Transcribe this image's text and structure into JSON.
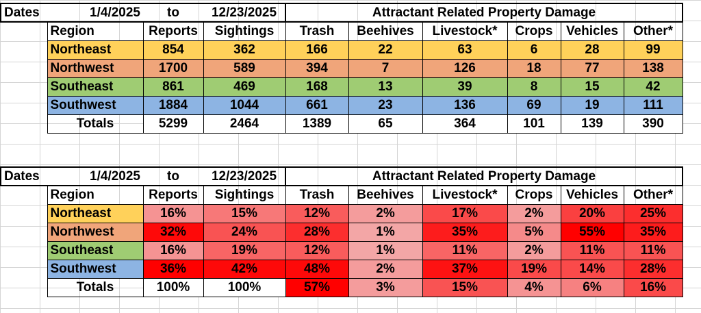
{
  "colors": {
    "northeast": "#ffd15a",
    "northwest": "#f0a57a",
    "southeast": "#9fcc73",
    "southwest": "#8db4e3",
    "heat_low": "#f2b8b8",
    "heat_high": "#ff0000"
  },
  "header": {
    "dates_label": "Dates",
    "start_date": "1/4/2025",
    "to_label": "to",
    "end_date": "12/23/2025",
    "damage_title": "Attractant Related Property Damage"
  },
  "columns": [
    "Region",
    "Reports",
    "Sightings",
    "Trash",
    "Beehives",
    "Livestock*",
    "Crops",
    "Vehicles",
    "Other*"
  ],
  "counts_table": {
    "rows": [
      {
        "region": "Northeast",
        "values": [
          "854",
          "362",
          "166",
          "22",
          "63",
          "6",
          "28",
          "99"
        ]
      },
      {
        "region": "Northwest",
        "values": [
          "1700",
          "589",
          "394",
          "7",
          "126",
          "18",
          "77",
          "138"
        ]
      },
      {
        "region": "Southeast",
        "values": [
          "861",
          "469",
          "168",
          "13",
          "39",
          "8",
          "15",
          "42"
        ]
      },
      {
        "region": "Southwest",
        "values": [
          "1884",
          "1044",
          "661",
          "23",
          "136",
          "69",
          "19",
          "111"
        ]
      }
    ],
    "totals": {
      "label": "Totals",
      "values": [
        "5299",
        "2464",
        "1389",
        "65",
        "364",
        "101",
        "139",
        "390"
      ]
    }
  },
  "percent_table": {
    "rows": [
      {
        "region": "Northeast",
        "values": [
          "16%",
          "15%",
          "12%",
          "2%",
          "17%",
          "2%",
          "20%",
          "25%"
        ]
      },
      {
        "region": "Northwest",
        "values": [
          "32%",
          "24%",
          "28%",
          "1%",
          "35%",
          "5%",
          "55%",
          "35%"
        ]
      },
      {
        "region": "Southeast",
        "values": [
          "16%",
          "19%",
          "12%",
          "1%",
          "11%",
          "2%",
          "11%",
          "11%"
        ]
      },
      {
        "region": "Southwest",
        "values": [
          "36%",
          "42%",
          "48%",
          "2%",
          "37%",
          "19%",
          "14%",
          "28%"
        ]
      }
    ],
    "totals": {
      "label": "Totals",
      "values": [
        "100%",
        "100%",
        "57%",
        "3%",
        "15%",
        "4%",
        "6%",
        "16%"
      ]
    },
    "heat_levels": [
      [
        0.2,
        0.35,
        0.5,
        0.15,
        0.6,
        0.15,
        0.65,
        0.75
      ],
      [
        0.95,
        0.55,
        0.75,
        0.1,
        0.85,
        0.25,
        1.0,
        0.85
      ],
      [
        0.2,
        0.45,
        0.5,
        0.1,
        0.45,
        0.15,
        0.55,
        0.55
      ],
      [
        1.0,
        0.95,
        0.95,
        0.15,
        0.9,
        0.6,
        0.6,
        0.75
      ]
    ],
    "totals_heat": [
      null,
      null,
      1.0,
      0.15,
      0.55,
      0.2,
      0.3,
      0.6
    ]
  }
}
